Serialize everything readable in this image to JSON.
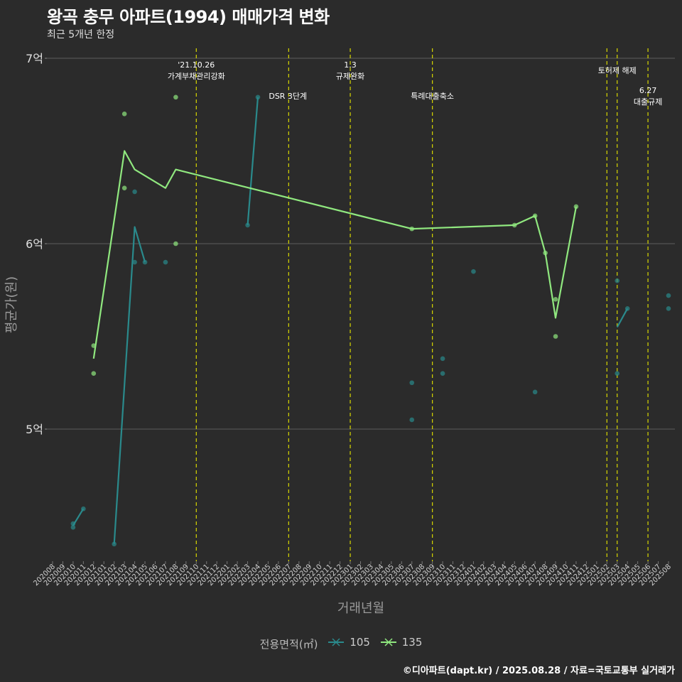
{
  "chart_data": {
    "type": "line",
    "title": "왕곡 충무 아파트(1994) 매매가격 변화",
    "subtitle": "최근 5개년 한정",
    "xlabel": "거래년월",
    "ylabel": "평균가(원)",
    "caption": "©디아파트(dapt.kr) / 2025.08.28 / 자료=국토교통부 실거래가",
    "legend_title": "전용면적(㎡)",
    "x_months": [
      "202008",
      "202009",
      "202010",
      "202011",
      "202012",
      "202101",
      "202102",
      "202103",
      "202104",
      "202105",
      "202106",
      "202107",
      "202108",
      "202109",
      "202110",
      "202111",
      "202112",
      "202201",
      "202202",
      "202203",
      "202204",
      "202205",
      "202206",
      "202207",
      "202208",
      "202209",
      "202210",
      "202211",
      "202212",
      "202301",
      "202302",
      "202303",
      "202304",
      "202305",
      "202306",
      "202307",
      "202308",
      "202309",
      "202310",
      "202311",
      "202312",
      "202401",
      "202402",
      "202403",
      "202404",
      "202405",
      "202406",
      "202407",
      "202408",
      "202409",
      "202410",
      "202411",
      "202412",
      "202501",
      "202502",
      "202503",
      "202504",
      "202505",
      "202506",
      "202507",
      "202508"
    ],
    "y_ticks": [
      {
        "value": 5.0,
        "label": "5억"
      },
      {
        "value": 6.0,
        "label": "6억"
      },
      {
        "value": 7.0,
        "label": "7억"
      }
    ],
    "ylim": [
      4.27,
      7.1
    ],
    "series": [
      {
        "name": "105",
        "color": "#2a8a8c",
        "line": [
          {
            "x": 2,
            "y": 4.48
          },
          {
            "x": 3,
            "y": 4.57
          },
          null,
          {
            "x": 6,
            "y": 4.38
          },
          {
            "x": 8,
            "y": 6.09
          },
          {
            "x": 9,
            "y": 5.9
          },
          null,
          {
            "x": 19,
            "y": 6.1
          },
          {
            "x": 20,
            "y": 6.79
          },
          null,
          {
            "x": 55,
            "y": 5.55
          },
          {
            "x": 56,
            "y": 5.65
          }
        ],
        "points": [
          {
            "x": 2,
            "y": 4.47
          },
          {
            "x": 2,
            "y": 4.49
          },
          {
            "x": 3,
            "y": 4.57
          },
          {
            "x": 6,
            "y": 4.38
          },
          {
            "x": 8,
            "y": 6.28
          },
          {
            "x": 8,
            "y": 5.9
          },
          {
            "x": 9,
            "y": 5.9
          },
          {
            "x": 11,
            "y": 5.9
          },
          {
            "x": 19,
            "y": 6.1
          },
          {
            "x": 20,
            "y": 6.79
          },
          {
            "x": 35,
            "y": 5.25
          },
          {
            "x": 35,
            "y": 5.05
          },
          {
            "x": 38,
            "y": 5.38
          },
          {
            "x": 38,
            "y": 5.3
          },
          {
            "x": 41,
            "y": 5.85
          },
          {
            "x": 47,
            "y": 5.2
          },
          {
            "x": 55,
            "y": 5.8
          },
          {
            "x": 55,
            "y": 5.3
          },
          {
            "x": 56,
            "y": 5.65
          },
          {
            "x": 60,
            "y": 5.72
          },
          {
            "x": 60,
            "y": 5.65
          }
        ]
      },
      {
        "name": "135",
        "color": "#90e87f",
        "line": [
          {
            "x": 4,
            "y": 5.38
          },
          {
            "x": 7,
            "y": 6.5
          },
          {
            "x": 8,
            "y": 6.4
          },
          {
            "x": 11,
            "y": 6.3
          },
          {
            "x": 12,
            "y": 6.4
          },
          {
            "x": 35,
            "y": 6.08
          },
          {
            "x": 45,
            "y": 6.1
          },
          {
            "x": 47,
            "y": 6.15
          },
          {
            "x": 48,
            "y": 5.95
          },
          {
            "x": 49,
            "y": 5.6
          },
          {
            "x": 51,
            "y": 6.2
          }
        ],
        "points": [
          {
            "x": 4,
            "y": 5.45
          },
          {
            "x": 4,
            "y": 5.3
          },
          {
            "x": 7,
            "y": 6.7
          },
          {
            "x": 7,
            "y": 6.3
          },
          {
            "x": 12,
            "y": 6.79
          },
          {
            "x": 12,
            "y": 6.0
          },
          {
            "x": 35,
            "y": 6.08
          },
          {
            "x": 45,
            "y": 6.1
          },
          {
            "x": 47,
            "y": 6.15
          },
          {
            "x": 48,
            "y": 5.95
          },
          {
            "x": 49,
            "y": 5.7
          },
          {
            "x": 49,
            "y": 5.5
          },
          {
            "x": 51,
            "y": 6.2
          }
        ]
      }
    ],
    "events": [
      {
        "x": 14,
        "lines": [
          "'21.10.26",
          "가계부채관리강화"
        ],
        "vpos": "top"
      },
      {
        "x": 23,
        "lines": [
          "DSR 3단계"
        ],
        "vpos": "mid"
      },
      {
        "x": 29,
        "lines": [
          "1.3",
          "규제완화"
        ],
        "vpos": "top"
      },
      {
        "x": 37,
        "lines": [
          "특례대출축소"
        ],
        "vpos": "mid"
      },
      {
        "x": 54,
        "lines": [],
        "vpos": "none"
      },
      {
        "x": 55,
        "lines": [
          "토허제 해제"
        ],
        "vpos": "high"
      },
      {
        "x": 58,
        "lines": [
          "6.27",
          "대출규제"
        ],
        "vpos": "low"
      }
    ]
  }
}
